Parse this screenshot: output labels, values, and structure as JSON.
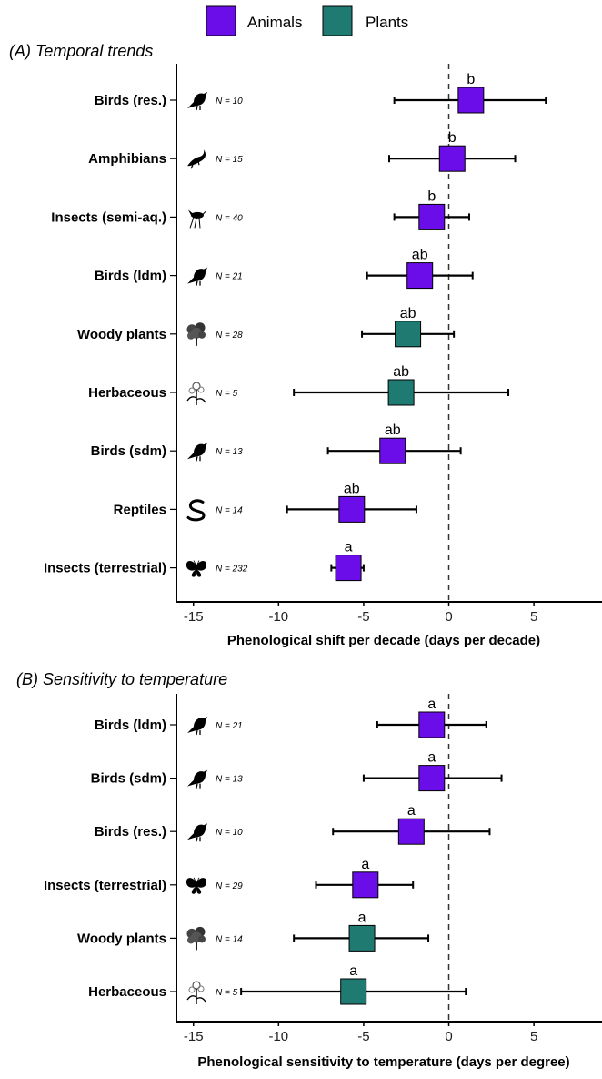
{
  "legend": {
    "items": [
      {
        "label": "Animals",
        "color": "#6a0de8"
      },
      {
        "label": "Plants",
        "color": "#1f7a72"
      }
    ]
  },
  "chart_data": [
    {
      "type": "forest",
      "title": "(A) Temporal trends",
      "xlabel": "Phenological shift per decade (days per decade)",
      "ylabel": "",
      "xlim": [
        -16,
        9
      ],
      "xticks": [
        -15,
        -10,
        -5,
        0,
        5
      ],
      "reference_line": 0,
      "rows": [
        {
          "label": "Birds (res.)",
          "group": "Animals",
          "icon": "bird-icon",
          "n": "N = 10",
          "mean": 1.3,
          "low": -3.2,
          "high": 5.7,
          "letter": "b"
        },
        {
          "label": "Amphibians",
          "group": "Animals",
          "icon": "salamander-icon",
          "n": "N = 15",
          "mean": 0.2,
          "low": -3.5,
          "high": 3.9,
          "letter": "b"
        },
        {
          "label": "Insects (semi-aq.)",
          "group": "Animals",
          "icon": "mosquito-icon",
          "n": "N = 40",
          "mean": -1.0,
          "low": -3.2,
          "high": 1.2,
          "letter": "b"
        },
        {
          "label": "Birds (ldm)",
          "group": "Animals",
          "icon": "bird-icon",
          "n": "N = 21",
          "mean": -1.7,
          "low": -4.8,
          "high": 1.4,
          "letter": "ab"
        },
        {
          "label": "Woody plants",
          "group": "Plants",
          "icon": "tree-icon",
          "n": "N = 28",
          "mean": -2.4,
          "low": -5.1,
          "high": 0.3,
          "letter": "ab"
        },
        {
          "label": "Herbaceous",
          "group": "Plants",
          "icon": "flower-icon",
          "n": "N = 5",
          "mean": -2.8,
          "low": -9.1,
          "high": 3.5,
          "letter": "ab"
        },
        {
          "label": "Birds (sdm)",
          "group": "Animals",
          "icon": "bird-icon",
          "n": "N = 13",
          "mean": -3.3,
          "low": -7.1,
          "high": 0.7,
          "letter": "ab"
        },
        {
          "label": "Reptiles",
          "group": "Animals",
          "icon": "snake-icon",
          "n": "N = 14",
          "mean": -5.7,
          "low": -9.5,
          "high": -1.9,
          "letter": "ab"
        },
        {
          "label": "Insects (terrestrial)",
          "group": "Animals",
          "icon": "butterfly-icon",
          "n": "N = 232",
          "mean": -5.9,
          "low": -6.9,
          "high": -5.0,
          "letter": "a"
        }
      ]
    },
    {
      "type": "forest",
      "title": "(B) Sensitivity to temperature",
      "xlabel": "Phenological sensitivity to temperature (days per degree)",
      "ylabel": "",
      "xlim": [
        -16,
        9
      ],
      "xticks": [
        -15,
        -10,
        -5,
        0,
        5
      ],
      "reference_line": 0,
      "rows": [
        {
          "label": "Birds (ldm)",
          "group": "Animals",
          "icon": "bird-icon",
          "n": "N = 21",
          "mean": -1.0,
          "low": -4.2,
          "high": 2.2,
          "letter": "a"
        },
        {
          "label": "Birds (sdm)",
          "group": "Animals",
          "icon": "bird-icon",
          "n": "N = 13",
          "mean": -1.0,
          "low": -5.0,
          "high": 3.1,
          "letter": "a"
        },
        {
          "label": "Birds (res.)",
          "group": "Animals",
          "icon": "bird-icon",
          "n": "N = 10",
          "mean": -2.2,
          "low": -6.8,
          "high": 2.4,
          "letter": "a"
        },
        {
          "label": "Insects (terrestrial)",
          "group": "Animals",
          "icon": "butterfly-icon",
          "n": "N = 29",
          "mean": -4.9,
          "low": -7.8,
          "high": -2.1,
          "letter": "a"
        },
        {
          "label": "Woody plants",
          "group": "Plants",
          "icon": "tree-icon",
          "n": "N = 14",
          "mean": -5.1,
          "low": -9.1,
          "high": -1.2,
          "letter": "a"
        },
        {
          "label": "Herbaceous",
          "group": "Plants",
          "icon": "flower-icon",
          "n": "N = 5",
          "mean": -5.6,
          "low": -12.2,
          "high": 1.0,
          "letter": "a"
        }
      ]
    }
  ]
}
